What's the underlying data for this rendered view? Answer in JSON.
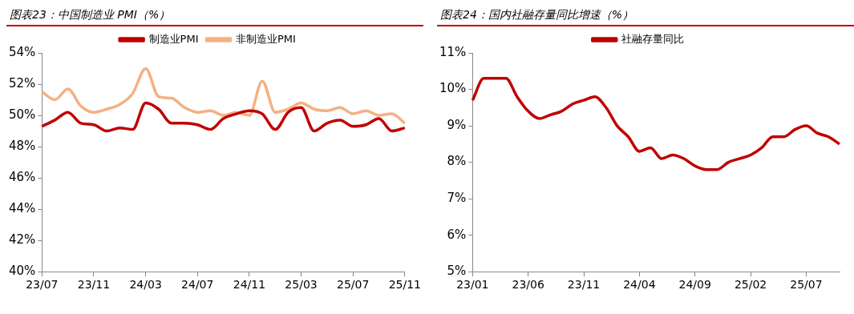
{
  "chart_data": [
    {
      "type": "line",
      "title": "图表23：中国制造业 PMI（%）",
      "categories": [
        "23/07",
        null,
        null,
        null,
        "23/11",
        null,
        null,
        null,
        "24/03",
        null,
        null,
        null,
        "24/07",
        null,
        null,
        null,
        "24/11",
        null,
        null,
        null,
        "25/03",
        null,
        null,
        null,
        "25/07",
        null,
        null,
        null,
        "25/11"
      ],
      "series": [
        {
          "name": "制造业PMI",
          "color": "#c00000",
          "values": [
            49.3,
            49.7,
            50.2,
            49.5,
            49.4,
            49.0,
            49.2,
            49.1,
            50.8,
            50.4,
            49.5,
            49.5,
            49.4,
            49.1,
            49.8,
            50.1,
            50.3,
            50.1,
            49.1,
            50.2,
            50.5,
            49.0,
            49.5,
            49.7,
            49.3,
            49.4,
            49.8,
            49.0,
            49.2
          ]
        },
        {
          "name": "非制造业PMI",
          "color": "#f4b183",
          "values": [
            51.5,
            51.0,
            51.7,
            50.6,
            50.2,
            50.4,
            50.7,
            51.4,
            53.0,
            51.2,
            51.1,
            50.5,
            50.2,
            50.3,
            50.0,
            50.2,
            50.0,
            52.2,
            50.2,
            50.4,
            50.8,
            50.4,
            50.3,
            50.5,
            50.1,
            50.3,
            50.0,
            50.1,
            49.5
          ]
        }
      ],
      "ylim": [
        40,
        54
      ],
      "yticks": [
        {
          "value": 40,
          "label": "40%"
        },
        {
          "value": 42,
          "label": "42%"
        },
        {
          "value": 44,
          "label": "44%"
        },
        {
          "value": 46,
          "label": "46%"
        },
        {
          "value": 48,
          "label": "48%"
        },
        {
          "value": 50,
          "label": "50%"
        },
        {
          "value": 52,
          "label": "52%"
        },
        {
          "value": 54,
          "label": "54%"
        }
      ],
      "grid": false,
      "legend": "top",
      "marker": "none",
      "line_style": "solid"
    },
    {
      "type": "line",
      "title": "图表24：国内社融存量同比增速（%）",
      "categories": [
        "23/01",
        null,
        null,
        null,
        null,
        "23/06",
        null,
        null,
        null,
        null,
        "23/11",
        null,
        null,
        null,
        null,
        "24/04",
        null,
        null,
        null,
        null,
        "24/09",
        null,
        null,
        null,
        null,
        "25/02",
        null,
        null,
        null,
        null,
        "25/07",
        null,
        null,
        null
      ],
      "series": [
        {
          "name": "社融存量同比",
          "color": "#c00000",
          "values": [
            9.7,
            10.3,
            10.3,
            10.3,
            9.8,
            9.4,
            9.2,
            9.3,
            9.4,
            9.6,
            9.7,
            9.8,
            9.5,
            9.0,
            8.7,
            8.3,
            8.4,
            8.1,
            8.2,
            8.1,
            7.9,
            7.8,
            7.8,
            8.0,
            8.1,
            8.2,
            8.4,
            8.7,
            8.7,
            8.9,
            9.0,
            8.8,
            8.7,
            8.5
          ]
        }
      ],
      "ylim": [
        5,
        11
      ],
      "yticks": [
        {
          "value": 5,
          "label": "5%"
        },
        {
          "value": 6,
          "label": "6%"
        },
        {
          "value": 7,
          "label": "7%"
        },
        {
          "value": 8,
          "label": "8%"
        },
        {
          "value": 9,
          "label": "9%"
        },
        {
          "value": 10,
          "label": "10%"
        },
        {
          "value": 11,
          "label": "11%"
        }
      ],
      "grid": false,
      "legend": "top",
      "marker": "none",
      "line_style": "solid"
    }
  ]
}
